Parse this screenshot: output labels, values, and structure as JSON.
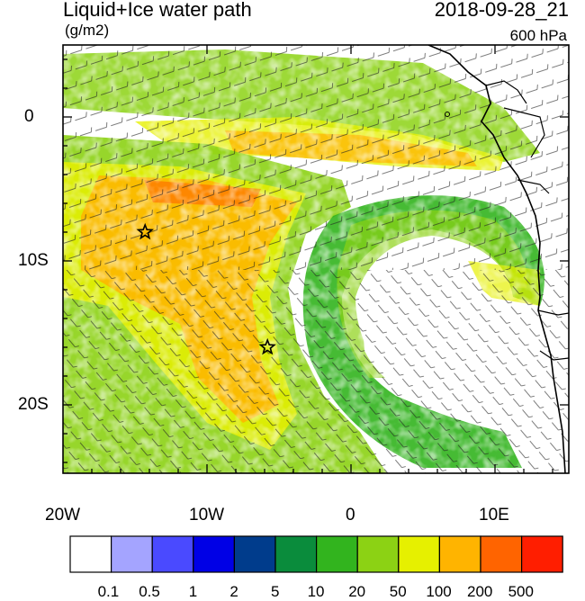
{
  "title": "Liquid+Ice water path",
  "datetime": "2018-09-28_21",
  "units": "(g/m2)",
  "level": "600 hPa",
  "axes": {
    "y_labels": [
      "0",
      "10S",
      "20S"
    ],
    "x_labels": [
      "20W",
      "10W",
      "0",
      "10E"
    ]
  },
  "colorbar": {
    "labels": [
      "0.1",
      "0.5",
      "1",
      "2",
      "5",
      "10",
      "20",
      "50",
      "100",
      "200",
      "500"
    ],
    "colors": [
      "#ffffff",
      "#a4a4ff",
      "#4a4aff",
      "#0000e6",
      "#003c8c",
      "#0a8c3c",
      "#32b41e",
      "#8cd214",
      "#e6f000",
      "#ffb400",
      "#ff6400",
      "#ff1e00"
    ]
  },
  "markers": [
    {
      "name": "star",
      "lon": -14.3,
      "lat": -8
    },
    {
      "name": "star",
      "lon": -5.8,
      "lat": -16
    }
  ]
}
